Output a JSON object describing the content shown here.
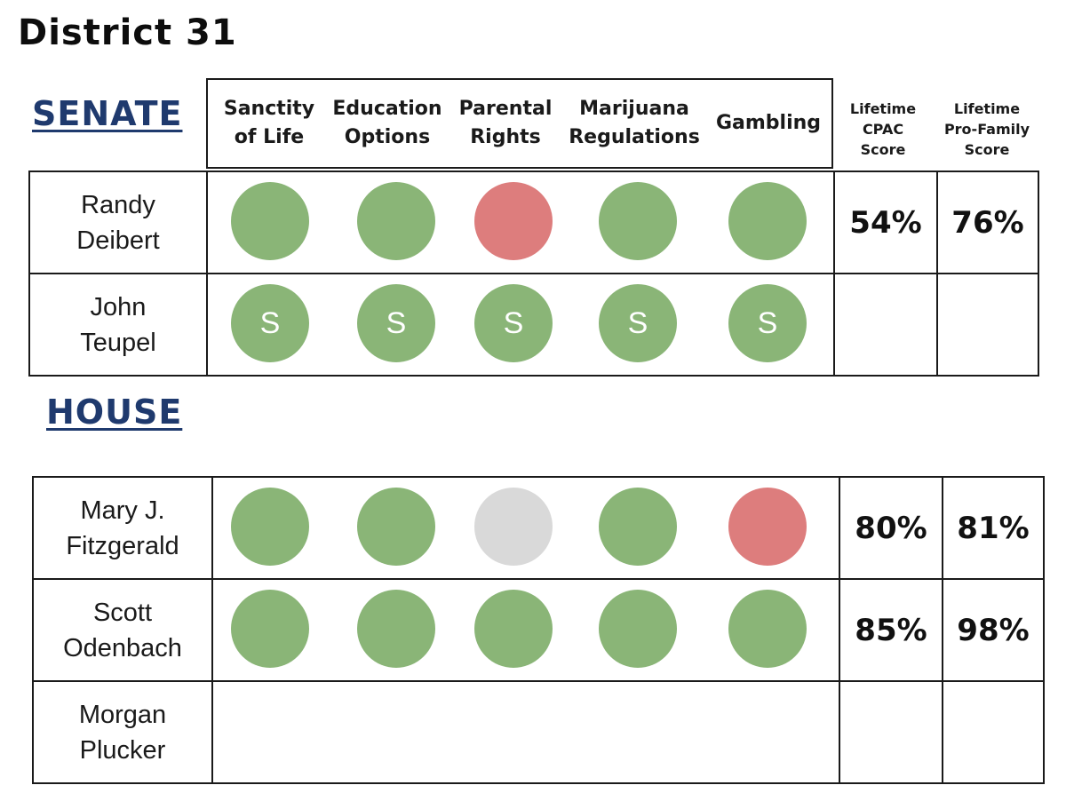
{
  "title": "District 31",
  "senate": {
    "heading": "SENATE",
    "issues": [
      "Sanctity of Life",
      "Education Options",
      "Parental Rights",
      "Marijuana Regulations",
      "Gambling"
    ],
    "issue_lines": [
      [
        "Sanctity",
        "of Life"
      ],
      [
        "Education",
        "Options"
      ],
      [
        "Parental",
        "Rights"
      ],
      [
        "Marijuana",
        "Regulations"
      ],
      [
        "Gambling"
      ]
    ],
    "score_headers": {
      "cpac": [
        "Lifetime",
        "CPAC",
        "Score"
      ],
      "profamily": [
        "Lifetime",
        "Pro-Family",
        "Score"
      ]
    },
    "rows": [
      {
        "name_lines": [
          "Randy",
          "Deibert"
        ],
        "votes": [
          "green",
          "green",
          "red",
          "green",
          "green"
        ],
        "vote_text": [
          "",
          "",
          "",
          "",
          ""
        ],
        "cpac": "54%",
        "profamily": "76%"
      },
      {
        "name_lines": [
          "John",
          "Teupel"
        ],
        "votes": [
          "green",
          "green",
          "green",
          "green",
          "green"
        ],
        "vote_text": [
          "S",
          "S",
          "S",
          "S",
          "S"
        ],
        "cpac": "",
        "profamily": ""
      }
    ]
  },
  "house": {
    "heading": "HOUSE",
    "rows": [
      {
        "name_lines": [
          "Mary J.",
          "Fitzgerald"
        ],
        "votes": [
          "green",
          "green",
          "gray",
          "green",
          "red"
        ],
        "vote_text": [
          "",
          "",
          "",
          "",
          ""
        ],
        "cpac": "80%",
        "profamily": "81%"
      },
      {
        "name_lines": [
          "Scott",
          "Odenbach"
        ],
        "votes": [
          "green",
          "green",
          "green",
          "green",
          "green"
        ],
        "vote_text": [
          "",
          "",
          "",
          "",
          ""
        ],
        "cpac": "85%",
        "profamily": "98%"
      },
      {
        "name_lines": [
          "Morgan",
          "Plucker"
        ],
        "votes": [],
        "vote_text": [],
        "cpac": "",
        "profamily": ""
      }
    ]
  },
  "legend_colors": {
    "support": "#8ab577",
    "oppose": "#dd7d7d",
    "no_position": "#d9d9d9",
    "heading": "#1f3a6e"
  }
}
